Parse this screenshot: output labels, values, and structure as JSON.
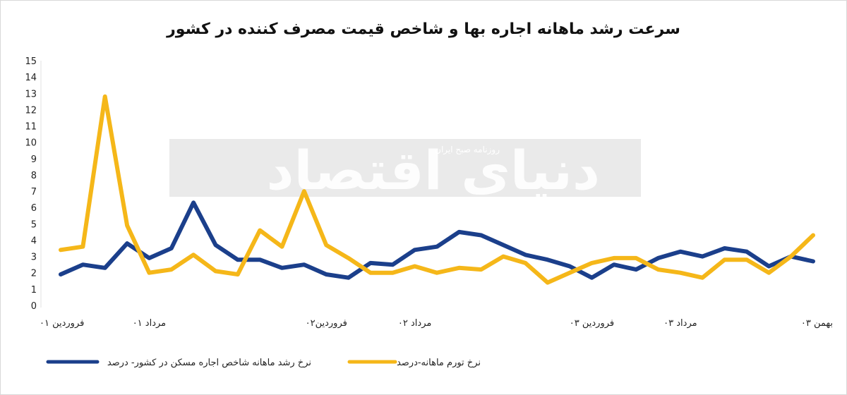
{
  "chart_data": {
    "type": "line",
    "title": "سرعت رشد ماهانه اجاره بها و شاخص قیمت مصرف کننده در کشور",
    "ylim": [
      0,
      15
    ],
    "yticks": [
      "0",
      "1",
      "2",
      "3",
      "4",
      "5",
      "6",
      "7",
      "8",
      "9",
      "10",
      "11",
      "12",
      "13",
      "14",
      "15"
    ],
    "grid": false,
    "legend_position": "bottom",
    "x_tick_labels": [
      {
        "label": "فروردین ۰۱",
        "index": 0
      },
      {
        "label": "مرداد ۰۱",
        "index": 4
      },
      {
        "label": "فروردین۰۲",
        "index": 12
      },
      {
        "label": "مرداد ۰۲",
        "index": 16
      },
      {
        "label": "فروردین ۰۳",
        "index": 24
      },
      {
        "label": "مرداد ۰۳",
        "index": 28
      },
      {
        "label": "بهمن ۰۳",
        "index": 34
      }
    ],
    "series": [
      {
        "name": "نرخ رشد ماهانه شاخص اجاره مسکن در کشور- درصد",
        "color": "#1b3f8b",
        "values": [
          1.9,
          2.5,
          2.3,
          3.8,
          2.9,
          3.5,
          6.3,
          3.7,
          2.8,
          2.8,
          2.3,
          2.5,
          1.9,
          1.7,
          2.6,
          2.5,
          3.4,
          3.6,
          4.5,
          4.3,
          3.7,
          3.1,
          2.8,
          2.4,
          1.7,
          2.5,
          2.2,
          2.9,
          3.3,
          3.0,
          3.5,
          3.3,
          2.4,
          3.0,
          2.7
        ]
      },
      {
        "name": "نرخ تورم ماهانه-درصد",
        "color": "#f5b719",
        "values": [
          3.4,
          3.6,
          12.8,
          4.9,
          2.0,
          2.2,
          3.1,
          2.1,
          1.9,
          4.6,
          3.6,
          7.0,
          3.7,
          2.9,
          2.0,
          2.0,
          2.4,
          2.0,
          2.3,
          2.2,
          3.0,
          2.6,
          1.4,
          2.0,
          2.6,
          2.9,
          2.9,
          2.2,
          2.0,
          1.7,
          2.8,
          2.8,
          2.0,
          3.0,
          4.3
        ]
      }
    ],
    "watermark": {
      "main": "دنیای اقتصاد",
      "sub": "روزنامه صبح ایران"
    }
  }
}
